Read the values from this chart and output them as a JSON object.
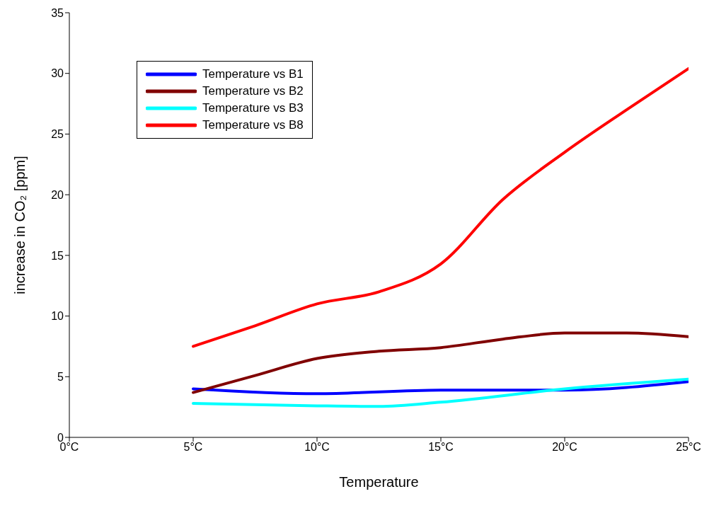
{
  "chart_data": {
    "type": "line",
    "xlabel": "Temperature",
    "ylabel": "increase in CO₂ [ppm]",
    "x": [
      5,
      7.5,
      10,
      12.5,
      15,
      17.5,
      20,
      22.5,
      25
    ],
    "series": [
      {
        "name": "Temperature vs B1",
        "color": "#0000ff",
        "x": [
          5,
          10,
          15,
          20,
          25
        ],
        "values": [
          4.0,
          3.6,
          3.9,
          3.9,
          4.6
        ]
      },
      {
        "name": "Temperature vs B2",
        "color": "#800000",
        "values": [
          3.7,
          5.1,
          6.5,
          7.1,
          7.4,
          8.1,
          8.6,
          8.6,
          8.3
        ]
      },
      {
        "name": "Temperature vs B3",
        "color": "#00ffff",
        "x": [
          5,
          10,
          12.5,
          15,
          20,
          25
        ],
        "values": [
          2.8,
          2.6,
          2.55,
          2.9,
          4.0,
          4.8
        ]
      },
      {
        "name": "Temperature vs B8",
        "color": "#ff0000",
        "values": [
          7.5,
          9.2,
          11.0,
          12.0,
          14.3,
          19.6,
          23.5,
          27.0,
          30.4
        ]
      }
    ],
    "xlim": [
      0,
      25
    ],
    "xticks": [
      {
        "value": 0,
        "label": "0°C"
      },
      {
        "value": 5,
        "label": "5°C"
      },
      {
        "value": 10,
        "label": "10°C"
      },
      {
        "value": 15,
        "label": "15°C"
      },
      {
        "value": 20,
        "label": "20°C"
      },
      {
        "value": 25,
        "label": "25°C"
      }
    ],
    "ylim": [
      0,
      35
    ],
    "yticks": [
      0,
      5,
      10,
      15,
      20,
      25,
      30,
      35
    ],
    "grid": false,
    "legend": "top left",
    "marker": "none",
    "line_style": "solid"
  }
}
